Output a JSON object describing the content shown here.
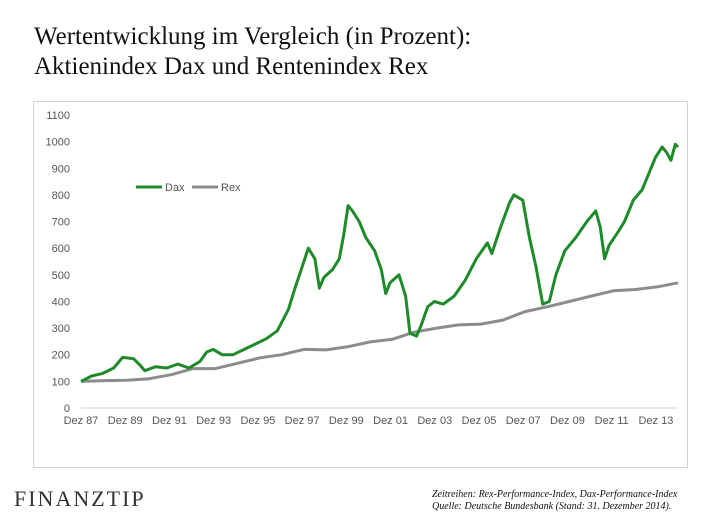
{
  "header": {
    "title_line1": "Wertentwicklung  im Vergleich  (in Prozent):",
    "title_line2": "Aktienindex  Dax und Rentenindex  Rex"
  },
  "footer": {
    "logo": "FINANZTIP",
    "source_line1": "Zeitreihen: Rex-Performance-Index, Dax-Performance-Index",
    "source_line2": "Quelle: Deutsche Bundesbank (Stand: 31. Dezember 2014)."
  },
  "chart_data": {
    "type": "line",
    "title": "",
    "xlabel": "",
    "ylabel": "",
    "ylim": [
      0,
      1100
    ],
    "xlim": [
      1987.92,
      2014.92
    ],
    "yticks": [
      0,
      100,
      200,
      300,
      400,
      500,
      600,
      700,
      800,
      900,
      1000,
      1100
    ],
    "xtick_labels": [
      "Dez 87",
      "Dez 89",
      "Dez 91",
      "Dez 93",
      "Dez 95",
      "Dez 97",
      "Dez 99",
      "Dez 01",
      "Dez 03",
      "Dez 05",
      "Dez 07",
      "Dez 09",
      "Dez 11",
      "Dez 13"
    ],
    "grid": false,
    "legend_position": "upper-left",
    "series": [
      {
        "name": "Dax",
        "color": "#1e8a2a",
        "x": [
          1987.92,
          1988.4,
          1988.9,
          1989.4,
          1989.8,
          1990.3,
          1990.6,
          1990.8,
          1991.3,
          1991.8,
          1992.3,
          1992.8,
          1993.3,
          1993.6,
          1993.9,
          1994.3,
          1994.8,
          1995.3,
          1995.8,
          1996.3,
          1996.8,
          1997.3,
          1997.6,
          1997.8,
          1998.2,
          1998.5,
          1998.7,
          1998.9,
          1999.3,
          1999.6,
          1999.8,
          2000.0,
          2000.2,
          2000.5,
          2000.8,
          2001.2,
          2001.5,
          2001.7,
          2001.9,
          2002.3,
          2002.6,
          2002.8,
          2003.1,
          2003.3,
          2003.6,
          2003.9,
          2004.3,
          2004.8,
          2005.3,
          2005.8,
          2006.3,
          2006.5,
          2006.9,
          2007.3,
          2007.5,
          2007.9,
          2008.2,
          2008.5,
          2008.8,
          2009.1,
          2009.4,
          2009.8,
          2010.3,
          2010.8,
          2011.2,
          2011.4,
          2011.6,
          2011.8,
          2012.2,
          2012.5,
          2012.9,
          2013.3,
          2013.6,
          2013.9,
          2014.2,
          2014.4,
          2014.6,
          2014.8,
          2014.92
        ],
        "values": [
          100,
          120,
          130,
          150,
          190,
          185,
          160,
          140,
          155,
          150,
          165,
          150,
          175,
          210,
          220,
          200,
          200,
          220,
          240,
          260,
          290,
          370,
          450,
          500,
          600,
          560,
          450,
          490,
          520,
          560,
          650,
          760,
          740,
          700,
          640,
          590,
          520,
          430,
          470,
          500,
          420,
          280,
          270,
          310,
          380,
          400,
          390,
          420,
          480,
          560,
          620,
          580,
          680,
          770,
          800,
          780,
          640,
          530,
          390,
          400,
          500,
          590,
          640,
          700,
          740,
          680,
          560,
          610,
          660,
          700,
          780,
          820,
          880,
          940,
          980,
          960,
          930,
          990,
          980
        ]
      },
      {
        "name": "Rex",
        "color": "#8c8c8c",
        "x": [
          1987.92,
          1989.0,
          1990.0,
          1991.0,
          1992.0,
          1993.0,
          1994.0,
          1995.0,
          1996.0,
          1997.0,
          1998.0,
          1999.0,
          2000.0,
          2001.0,
          2002.0,
          2003.0,
          2004.0,
          2005.0,
          2006.0,
          2007.0,
          2008.0,
          2009.0,
          2010.0,
          2011.0,
          2012.0,
          2013.0,
          2014.0,
          2014.92
        ],
        "values": [
          100,
          103,
          104,
          110,
          125,
          148,
          148,
          168,
          188,
          200,
          220,
          218,
          230,
          248,
          258,
          285,
          300,
          312,
          315,
          330,
          362,
          380,
          400,
          420,
          440,
          445,
          455,
          470
        ]
      }
    ]
  }
}
